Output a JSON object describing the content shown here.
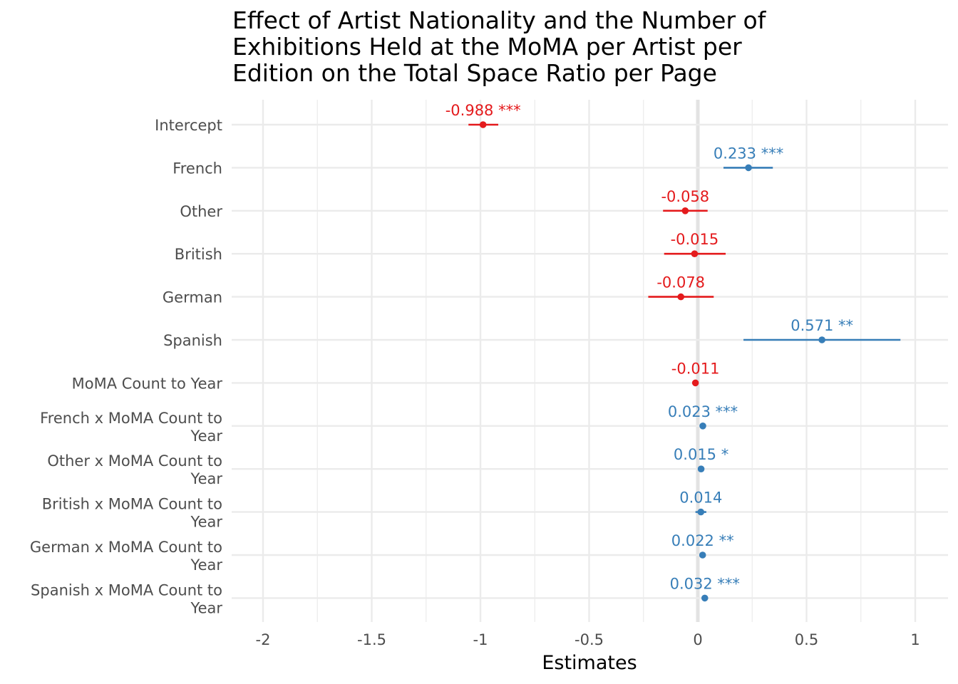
{
  "chart_data": {
    "type": "forest",
    "title_lines": [
      "Effect of Artist Nationality and the Number of",
      "Exhibitions Held at the MoMA per Artist per",
      "Edition on the Total Space Ratio per Page"
    ],
    "xlabel": "Estimates",
    "xlim": [
      -2.15,
      1.15
    ],
    "xticks": [
      -2,
      -1.5,
      -1,
      -0.5,
      0,
      0.5,
      1
    ],
    "xtick_labels": [
      "-2",
      "-1.5",
      "-1",
      "-0.5",
      "0",
      "0.5",
      "1"
    ],
    "grid": true,
    "colors": {
      "positive": "#377eb8",
      "negative": "#e41a1c"
    },
    "terms": [
      {
        "label_lines": [
          "Intercept"
        ],
        "estimate": -0.988,
        "ci": [
          -1.055,
          -0.918
        ],
        "label": "-0.988 ***"
      },
      {
        "label_lines": [
          "French"
        ],
        "estimate": 0.233,
        "ci": [
          0.118,
          0.345
        ],
        "label": "0.233 ***"
      },
      {
        "label_lines": [
          "Other"
        ],
        "estimate": -0.058,
        "ci": [
          -0.16,
          0.045
        ],
        "label": "-0.058"
      },
      {
        "label_lines": [
          "British"
        ],
        "estimate": -0.015,
        "ci": [
          -0.155,
          0.128
        ],
        "label": "-0.015"
      },
      {
        "label_lines": [
          "German"
        ],
        "estimate": -0.078,
        "ci": [
          -0.228,
          0.073
        ],
        "label": "-0.078"
      },
      {
        "label_lines": [
          "Spanish"
        ],
        "estimate": 0.571,
        "ci": [
          0.21,
          0.932
        ],
        "label": "0.571 **"
      },
      {
        "label_lines": [
          "MoMA Count to Year"
        ],
        "estimate": -0.011,
        "ci": [
          -0.014,
          -0.008
        ],
        "label": "-0.011"
      },
      {
        "label_lines": [
          "French x MoMA Count to",
          "Year"
        ],
        "estimate": 0.023,
        "ci": [
          0.016,
          0.03
        ],
        "label": "0.023 ***"
      },
      {
        "label_lines": [
          "Other x MoMA Count to",
          "Year"
        ],
        "estimate": 0.015,
        "ci": [
          0.004,
          0.026
        ],
        "label": "0.015 *"
      },
      {
        "label_lines": [
          "British x MoMA Count to",
          "Year"
        ],
        "estimate": 0.014,
        "ci": [
          -0.011,
          0.039
        ],
        "label": "0.014"
      },
      {
        "label_lines": [
          "German x MoMA Count to",
          "Year"
        ],
        "estimate": 0.022,
        "ci": [
          0.008,
          0.036
        ],
        "label": "0.022 **"
      },
      {
        "label_lines": [
          "Spanish x MoMA Count to",
          "Year"
        ],
        "estimate": 0.032,
        "ci": [
          0.02,
          0.044
        ],
        "label": "0.032 ***"
      }
    ]
  }
}
